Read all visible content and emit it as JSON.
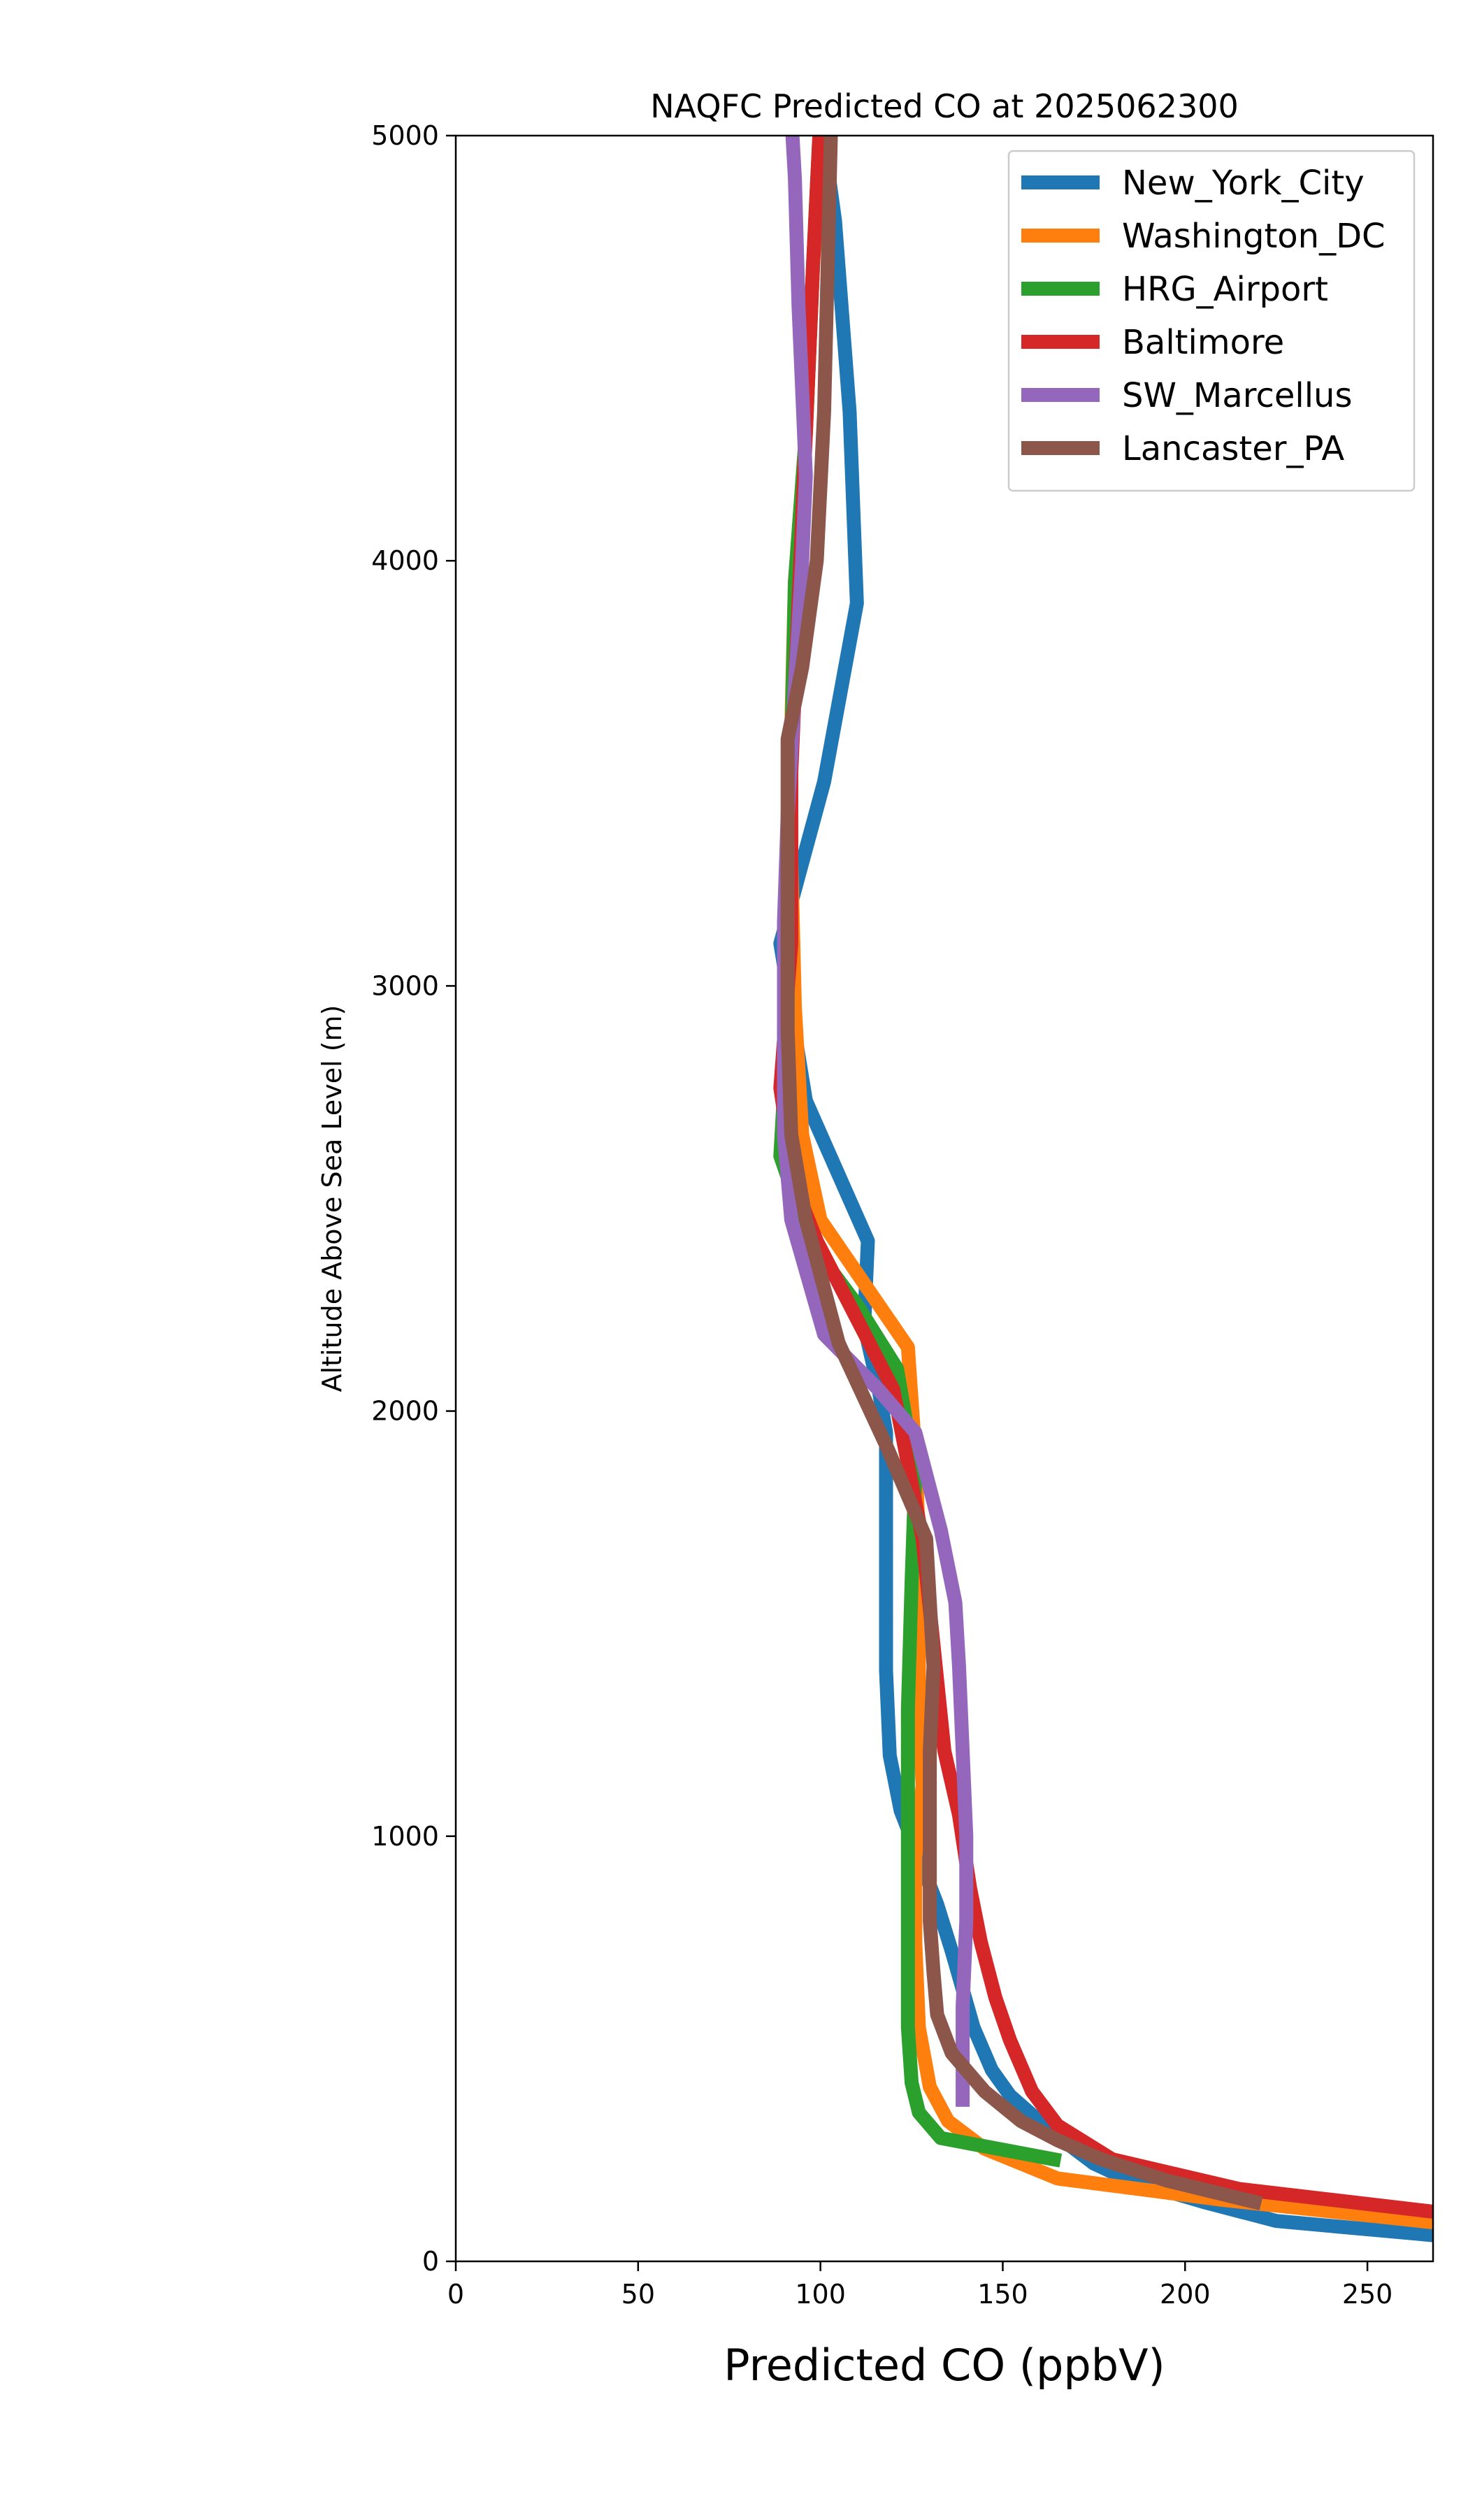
{
  "chart_data": {
    "type": "line",
    "title": "NAQFC Predicted CO at 2025062300",
    "xlabel": "Predicted CO (ppbV)",
    "ylabel": "Altitude Above Sea Level (m)",
    "xlim": [
      0,
      268
    ],
    "ylim": [
      0,
      5000
    ],
    "x_ticks": [
      0,
      50,
      100,
      150,
      200,
      250
    ],
    "y_ticks": [
      0,
      1000,
      2000,
      3000,
      4000,
      5000
    ],
    "grid": false,
    "legend_position": "upper right",
    "series": [
      {
        "name": "New_York_City",
        "color": "#1f77b4",
        "points": [
          [
            270,
            60
          ],
          [
            225,
            95
          ],
          [
            205,
            140
          ],
          [
            185,
            190
          ],
          [
            175,
            230
          ],
          [
            168,
            275
          ],
          [
            160,
            330
          ],
          [
            152,
            390
          ],
          [
            147,
            450
          ],
          [
            142,
            550
          ],
          [
            139,
            640
          ],
          [
            136,
            730
          ],
          [
            132,
            840
          ],
          [
            127,
            950
          ],
          [
            122,
            1060
          ],
          [
            119,
            1190
          ],
          [
            118,
            1390
          ],
          [
            118,
            1600
          ],
          [
            118,
            1800
          ],
          [
            118,
            1950
          ],
          [
            116,
            2050
          ],
          [
            112,
            2200
          ],
          [
            113,
            2400
          ],
          [
            96,
            2730
          ],
          [
            89,
            3100
          ],
          [
            101,
            3480
          ],
          [
            110,
            3900
          ],
          [
            108,
            4350
          ],
          [
            104,
            4800
          ],
          [
            100,
            5050
          ]
        ]
      },
      {
        "name": "Washington_DC",
        "color": "#ff7f0e",
        "points": [
          [
            270,
            90
          ],
          [
            210,
            145
          ],
          [
            165,
            195
          ],
          [
            145,
            265
          ],
          [
            135,
            330
          ],
          [
            130,
            410
          ],
          [
            127,
            550
          ],
          [
            126,
            750
          ],
          [
            126,
            950
          ],
          [
            128,
            1120
          ],
          [
            127,
            1300
          ],
          [
            127,
            1500
          ],
          [
            127,
            1700
          ],
          [
            126,
            1900
          ],
          [
            124,
            2150
          ],
          [
            100,
            2450
          ],
          [
            95,
            2650
          ],
          [
            93,
            2950
          ],
          [
            92,
            3300
          ],
          [
            92,
            3600
          ],
          [
            93,
            3950
          ],
          [
            96,
            4300
          ],
          [
            98,
            4700
          ],
          [
            101,
            5050
          ]
        ]
      },
      {
        "name": "HRG_Airport",
        "color": "#2ca02c",
        "points": [
          [
            164,
            240
          ],
          [
            133,
            290
          ],
          [
            127,
            350
          ],
          [
            125,
            420
          ],
          [
            124,
            550
          ],
          [
            124,
            750
          ],
          [
            124,
            1000
          ],
          [
            124,
            1300
          ],
          [
            125,
            1600
          ],
          [
            126,
            1850
          ],
          [
            121,
            2100
          ],
          [
            110,
            2250
          ],
          [
            97,
            2400
          ],
          [
            89,
            2600
          ],
          [
            91,
            2900
          ],
          [
            91,
            3200
          ],
          [
            92,
            3550
          ],
          [
            93,
            3950
          ],
          [
            96,
            4300
          ],
          [
            98,
            4700
          ],
          [
            100,
            5050
          ]
        ]
      },
      {
        "name": "Baltimore",
        "color": "#d62728",
        "points": [
          [
            270,
            115
          ],
          [
            215,
            170
          ],
          [
            180,
            240
          ],
          [
            165,
            320
          ],
          [
            158,
            400
          ],
          [
            152,
            520
          ],
          [
            148,
            620
          ],
          [
            144,
            750
          ],
          [
            141,
            880
          ],
          [
            138,
            1050
          ],
          [
            134,
            1200
          ],
          [
            131,
            1450
          ],
          [
            128,
            1700
          ],
          [
            120,
            2050
          ],
          [
            108,
            2250
          ],
          [
            99,
            2400
          ],
          [
            93,
            2530
          ],
          [
            89,
            2760
          ],
          [
            92,
            3100
          ],
          [
            92,
            3500
          ],
          [
            94,
            3900
          ],
          [
            96,
            4300
          ],
          [
            98,
            4700
          ],
          [
            100,
            5050
          ]
        ]
      },
      {
        "name": "SW_Marcellus",
        "color": "#9467bd",
        "points": [
          [
            139,
            380
          ],
          [
            139,
            600
          ],
          [
            140,
            800
          ],
          [
            140,
            1000
          ],
          [
            139,
            1200
          ],
          [
            138,
            1400
          ],
          [
            137,
            1550
          ],
          [
            133,
            1720
          ],
          [
            126,
            1950
          ],
          [
            116,
            2050
          ],
          [
            101,
            2180
          ],
          [
            92,
            2450
          ],
          [
            90,
            2650
          ],
          [
            90,
            2900
          ],
          [
            90,
            3150
          ],
          [
            91,
            3400
          ],
          [
            93,
            3700
          ],
          [
            95,
            4000
          ],
          [
            96,
            4200
          ],
          [
            94,
            4600
          ],
          [
            93,
            4900
          ],
          [
            92,
            5050
          ]
        ]
      },
      {
        "name": "Lancaster_PA",
        "color": "#8c564b",
        "points": [
          [
            219,
            140
          ],
          [
            195,
            190
          ],
          [
            177,
            240
          ],
          [
            165,
            285
          ],
          [
            155,
            330
          ],
          [
            145,
            400
          ],
          [
            136,
            490
          ],
          [
            132,
            580
          ],
          [
            131,
            680
          ],
          [
            130,
            800
          ],
          [
            130,
            900
          ],
          [
            130,
            1050
          ],
          [
            130,
            1200
          ],
          [
            131,
            1400
          ],
          [
            129,
            1700
          ],
          [
            118,
            1920
          ],
          [
            105,
            2160
          ],
          [
            96,
            2450
          ],
          [
            92,
            2650
          ],
          [
            91,
            2900
          ],
          [
            91,
            3200
          ],
          [
            91,
            3580
          ],
          [
            95,
            3750
          ],
          [
            99,
            4000
          ],
          [
            101,
            4350
          ],
          [
            102,
            4700
          ],
          [
            103,
            5050
          ]
        ]
      }
    ]
  }
}
